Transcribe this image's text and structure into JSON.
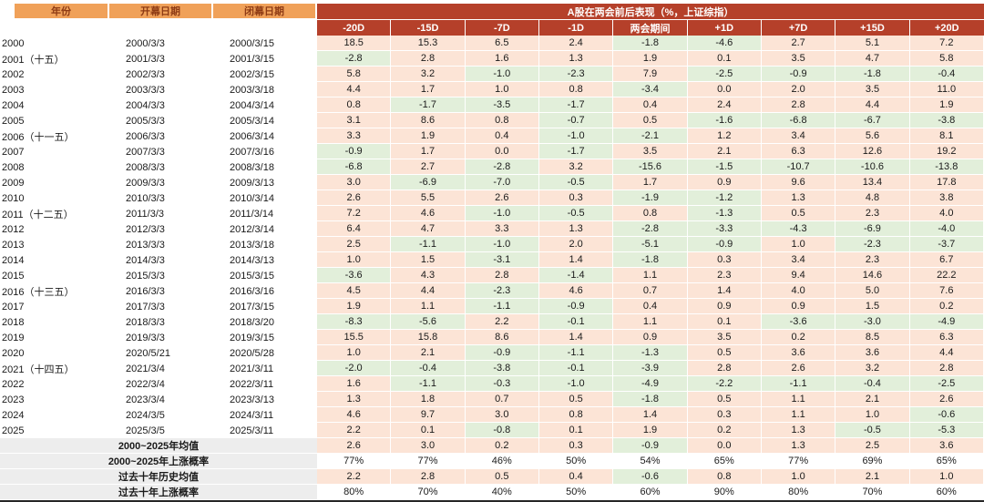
{
  "colors": {
    "banner_bg": "#B5402A",
    "header_orange_bg": "#F0A159",
    "header_orange_text": "#8E3B14",
    "positive_bg": "#FCE4D6",
    "negative_bg": "#E2EFDA",
    "summary_label_bg": "#EDEDED"
  },
  "chart_data": {
    "type": "table",
    "title": "A股在两会前后表现（%，上证综指）",
    "left_columns": [
      "年份",
      "开幕日期",
      "闭幕日期"
    ],
    "period_columns": [
      "-20D",
      "-15D",
      "-7D",
      "-1D",
      "两会期间",
      "+1D",
      "+7D",
      "+15D",
      "+20D"
    ],
    "color_rule": "positive values shaded pink, negative values shaded green",
    "rows": [
      {
        "year": "2000",
        "open": "2000/3/3",
        "close": "2000/3/15",
        "values": [
          "18.5",
          "15.3",
          "6.5",
          "2.4",
          "-1.8",
          "-4.6",
          "2.7",
          "5.1",
          "7.2"
        ]
      },
      {
        "year": "2001（十五）",
        "open": "2001/3/3",
        "close": "2001/3/15",
        "values": [
          "-2.8",
          "2.8",
          "1.6",
          "1.3",
          "1.9",
          "0.1",
          "3.5",
          "4.7",
          "5.8"
        ]
      },
      {
        "year": "2002",
        "open": "2002/3/3",
        "close": "2002/3/15",
        "values": [
          "5.8",
          "3.2",
          "-1.0",
          "-2.3",
          "7.9",
          "-2.5",
          "-0.9",
          "-1.8",
          "-0.4"
        ]
      },
      {
        "year": "2003",
        "open": "2003/3/3",
        "close": "2003/3/18",
        "values": [
          "4.4",
          "1.7",
          "1.0",
          "0.8",
          "-3.4",
          "0.0",
          "2.0",
          "3.5",
          "11.0"
        ]
      },
      {
        "year": "2004",
        "open": "2004/3/3",
        "close": "2004/3/14",
        "values": [
          "0.8",
          "-1.7",
          "-3.5",
          "-1.7",
          "0.4",
          "2.4",
          "2.8",
          "4.4",
          "1.9"
        ]
      },
      {
        "year": "2005",
        "open": "2005/3/3",
        "close": "2005/3/14",
        "values": [
          "3.1",
          "8.6",
          "0.8",
          "-0.7",
          "0.5",
          "-1.6",
          "-6.8",
          "-6.7",
          "-3.8"
        ]
      },
      {
        "year": "2006（十一五）",
        "open": "2006/3/3",
        "close": "2006/3/14",
        "values": [
          "3.3",
          "1.9",
          "0.4",
          "-1.0",
          "-2.1",
          "1.2",
          "3.4",
          "5.6",
          "8.1"
        ]
      },
      {
        "year": "2007",
        "open": "2007/3/3",
        "close": "2007/3/16",
        "values": [
          "-0.9",
          "1.7",
          "0.0",
          "-1.7",
          "3.5",
          "2.1",
          "6.3",
          "12.6",
          "19.2"
        ]
      },
      {
        "year": "2008",
        "open": "2008/3/3",
        "close": "2008/3/18",
        "values": [
          "-6.8",
          "2.7",
          "-2.8",
          "3.2",
          "-15.6",
          "-1.5",
          "-10.7",
          "-10.6",
          "-13.8"
        ]
      },
      {
        "year": "2009",
        "open": "2009/3/3",
        "close": "2009/3/13",
        "values": [
          "3.0",
          "-6.9",
          "-7.0",
          "-0.5",
          "1.7",
          "0.9",
          "9.6",
          "13.4",
          "17.8"
        ]
      },
      {
        "year": "2010",
        "open": "2010/3/3",
        "close": "2010/3/14",
        "values": [
          "2.6",
          "5.5",
          "2.6",
          "0.3",
          "-1.9",
          "-1.2",
          "1.3",
          "4.8",
          "3.8"
        ]
      },
      {
        "year": "2011（十二五）",
        "open": "2011/3/3",
        "close": "2011/3/14",
        "values": [
          "7.2",
          "4.6",
          "-1.0",
          "-0.5",
          "0.8",
          "-1.3",
          "0.5",
          "2.3",
          "4.0"
        ]
      },
      {
        "year": "2012",
        "open": "2012/3/3",
        "close": "2012/3/14",
        "values": [
          "6.4",
          "4.7",
          "3.3",
          "1.3",
          "-2.8",
          "-3.3",
          "-4.3",
          "-6.9",
          "-4.0"
        ]
      },
      {
        "year": "2013",
        "open": "2013/3/3",
        "close": "2013/3/18",
        "values": [
          "2.5",
          "-1.1",
          "-1.0",
          "2.0",
          "-5.1",
          "-0.9",
          "1.0",
          "-2.3",
          "-3.7"
        ]
      },
      {
        "year": "2014",
        "open": "2014/3/3",
        "close": "2014/3/13",
        "values": [
          "1.0",
          "1.5",
          "-3.1",
          "1.4",
          "-1.8",
          "0.3",
          "3.4",
          "2.3",
          "6.7"
        ]
      },
      {
        "year": "2015",
        "open": "2015/3/3",
        "close": "2015/3/15",
        "values": [
          "-3.6",
          "4.3",
          "2.8",
          "-1.4",
          "1.1",
          "2.3",
          "9.4",
          "14.6",
          "22.2"
        ]
      },
      {
        "year": "2016（十三五）",
        "open": "2016/3/3",
        "close": "2016/3/16",
        "values": [
          "4.5",
          "4.4",
          "-2.3",
          "4.6",
          "0.7",
          "1.4",
          "4.0",
          "5.0",
          "7.6"
        ]
      },
      {
        "year": "2017",
        "open": "2017/3/3",
        "close": "2017/3/15",
        "values": [
          "1.9",
          "1.1",
          "-1.1",
          "-0.9",
          "0.4",
          "0.9",
          "0.9",
          "1.5",
          "0.2"
        ]
      },
      {
        "year": "2018",
        "open": "2018/3/3",
        "close": "2018/3/20",
        "values": [
          "-8.3",
          "-5.6",
          "2.2",
          "-0.1",
          "1.1",
          "0.1",
          "-3.6",
          "-3.0",
          "-4.9"
        ]
      },
      {
        "year": "2019",
        "open": "2019/3/3",
        "close": "2019/3/15",
        "values": [
          "15.5",
          "15.8",
          "8.6",
          "1.4",
          "0.9",
          "3.5",
          "0.2",
          "8.5",
          "6.3"
        ]
      },
      {
        "year": "2020",
        "open": "2020/5/21",
        "close": "2020/5/28",
        "values": [
          "1.0",
          "2.1",
          "-0.9",
          "-1.1",
          "-1.3",
          "0.5",
          "3.6",
          "3.6",
          "4.4"
        ]
      },
      {
        "year": "2021（十四五）",
        "open": "2021/3/4",
        "close": "2021/3/11",
        "values": [
          "-2.0",
          "-0.4",
          "-3.8",
          "-0.1",
          "-3.9",
          "2.8",
          "2.6",
          "3.2",
          "2.8"
        ]
      },
      {
        "year": "2022",
        "open": "2022/3/4",
        "close": "2022/3/11",
        "values": [
          "1.6",
          "-1.1",
          "-0.3",
          "-1.0",
          "-4.9",
          "-2.2",
          "-1.1",
          "-0.4",
          "-2.5"
        ]
      },
      {
        "year": "2023",
        "open": "2023/3/4",
        "close": "2023/3/13",
        "values": [
          "1.3",
          "1.8",
          "0.7",
          "0.5",
          "-1.8",
          "0.5",
          "1.1",
          "2.1",
          "2.6"
        ]
      },
      {
        "year": "2024",
        "open": "2024/3/5",
        "close": "2024/3/11",
        "values": [
          "4.6",
          "9.7",
          "3.0",
          "0.8",
          "1.4",
          "0.3",
          "1.1",
          "1.0",
          "-0.6"
        ]
      },
      {
        "year": "2025",
        "open": "2025/3/5",
        "close": "2025/3/11",
        "values": [
          "2.2",
          "0.1",
          "-0.8",
          "0.1",
          "1.9",
          "0.2",
          "1.3",
          "-0.5",
          "-5.3"
        ]
      }
    ],
    "summary_rows": [
      {
        "label": "2000~2025年均值",
        "colored": true,
        "values": [
          "2.6",
          "3.0",
          "0.2",
          "0.3",
          "-0.9",
          "0.0",
          "1.3",
          "2.5",
          "3.6"
        ]
      },
      {
        "label": "2000~2025年上涨概率",
        "colored": false,
        "values": [
          "77%",
          "77%",
          "46%",
          "50%",
          "54%",
          "65%",
          "77%",
          "69%",
          "65%"
        ]
      },
      {
        "label": "过去十年历史均值",
        "colored": true,
        "values": [
          "2.2",
          "2.8",
          "0.5",
          "0.4",
          "-0.6",
          "0.8",
          "1.0",
          "2.1",
          "1.0"
        ]
      },
      {
        "label": "过去十年上涨概率",
        "colored": false,
        "values": [
          "80%",
          "70%",
          "40%",
          "50%",
          "60%",
          "90%",
          "80%",
          "70%",
          "60%"
        ]
      }
    ]
  }
}
